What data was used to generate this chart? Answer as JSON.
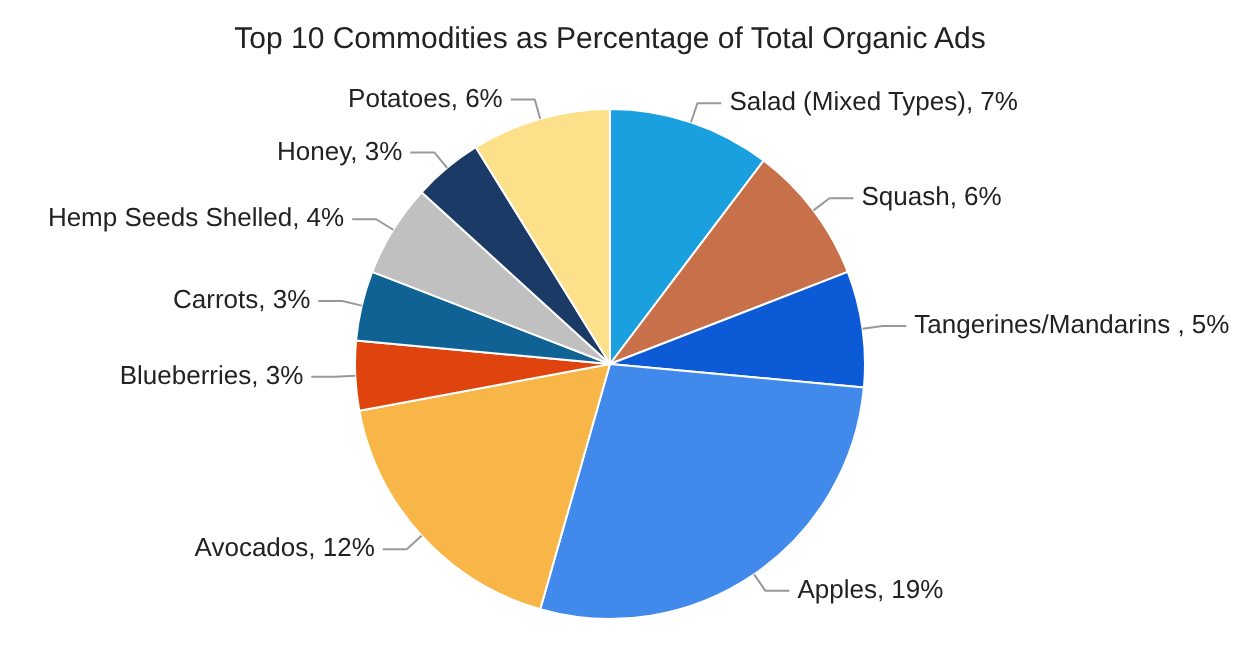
{
  "chart_data": {
    "type": "pie",
    "title": "Top 10 Commodities as Percentage of Total Organic Ads",
    "categories": [
      "Salad (Mixed Types)",
      "Squash",
      "Tangerines/Mandarins ",
      "Apples",
      "Avocados",
      "Blueberries",
      "Carrots",
      "Hemp Seeds Shelled",
      "Honey",
      "Potatoes"
    ],
    "values": [
      7,
      6,
      5,
      19,
      12,
      3,
      3,
      4,
      3,
      6
    ],
    "value_labels": [
      "7%",
      "6%",
      "5%",
      "19%",
      "12%",
      "3%",
      "3%",
      "4%",
      "3%",
      "6%"
    ],
    "colors": [
      "#1a9fdf",
      "#c8704a",
      "#0d5ad6",
      "#4189ea",
      "#f9b648",
      "#e0440e",
      "#0f6293",
      "#c0c0c0",
      "#1b3a66",
      "#fce08a"
    ],
    "legend": false
  }
}
